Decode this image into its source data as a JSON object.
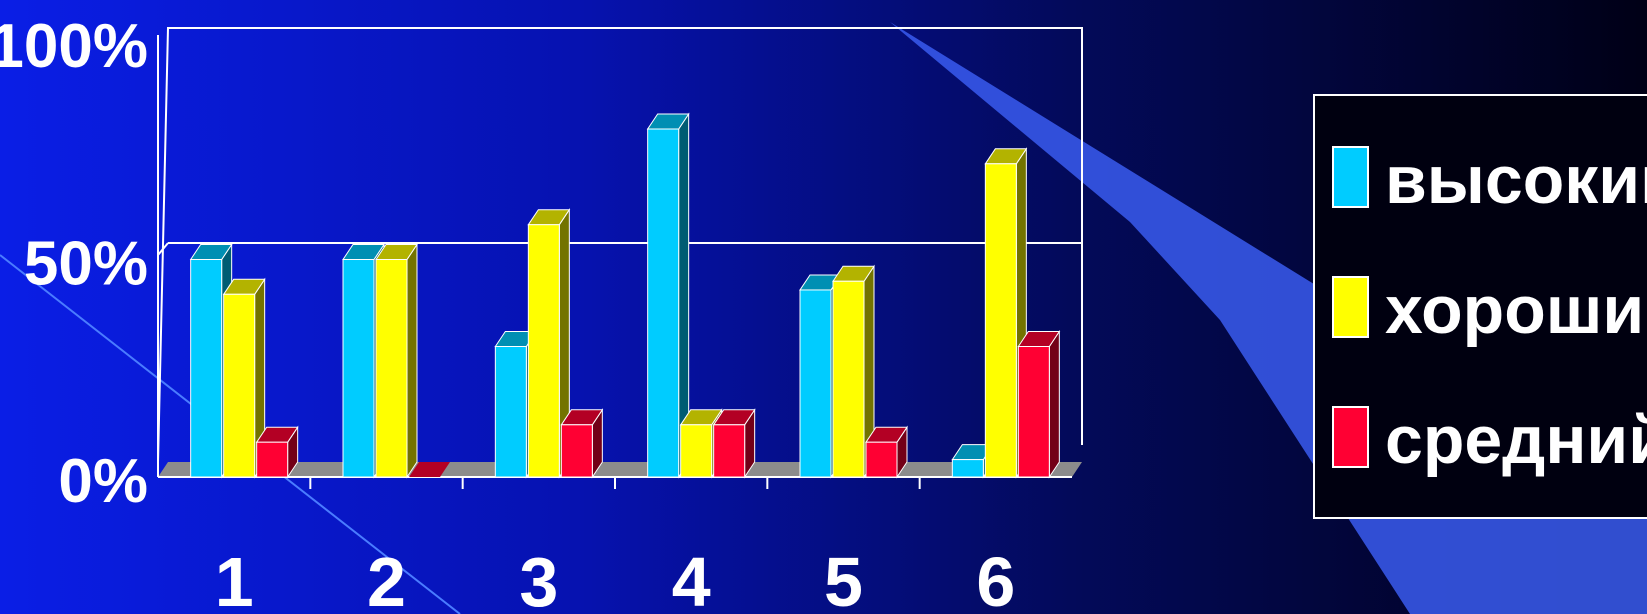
{
  "chart_data": {
    "type": "bar",
    "categories": [
      "1",
      "2",
      "3",
      "4",
      "5",
      "6"
    ],
    "series": [
      {
        "name": "высокий",
        "values": [
          50,
          50,
          30,
          80,
          43,
          4
        ],
        "color": "#00ccff"
      },
      {
        "name": "хороший",
        "values": [
          42,
          50,
          58,
          12,
          45,
          72
        ],
        "color": "#ffff00"
      },
      {
        "name": "средний",
        "values": [
          8,
          0,
          12,
          12,
          8,
          30
        ],
        "color": "#ff0033"
      }
    ],
    "yticks": [
      "0%",
      "50%",
      "100%"
    ],
    "ylim": [
      0,
      100
    ],
    "legend_position": "right",
    "grid": true,
    "style": "3d-clustered-bar"
  }
}
